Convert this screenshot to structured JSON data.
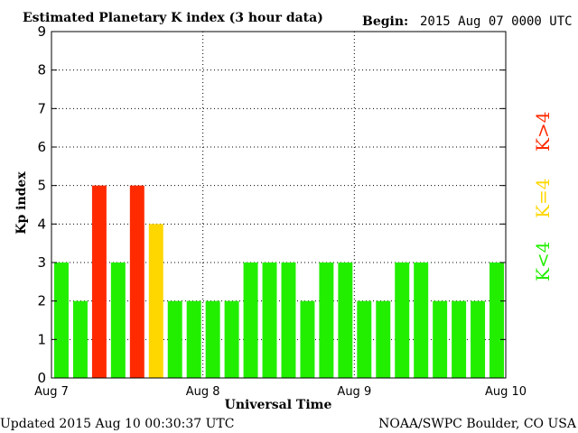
{
  "header": {
    "title": "Estimated Planetary K index (3 hour data)",
    "begin_label": "Begin:",
    "begin_value": "2015 Aug 07 0000 UTC"
  },
  "footer": {
    "updated": "Updated 2015 Aug 10 00:30:37 UTC",
    "source": "NOAA/SWPC Boulder, CO USA"
  },
  "legend": {
    "high": "K>4",
    "equal": "K=4",
    "low": "K<4"
  },
  "colors": {
    "high": "#ff2a00",
    "equal": "#ffd700",
    "low": "#22ee00"
  },
  "chart_data": {
    "type": "bar",
    "title": "Estimated Planetary K index (3 hour data)",
    "xlabel": "Universal Time",
    "ylabel": "Kp index",
    "ylim": [
      0,
      9
    ],
    "yticks": [
      0,
      1,
      2,
      3,
      4,
      5,
      6,
      7,
      8,
      9
    ],
    "xtick_labels": [
      "Aug 7",
      "Aug 8",
      "Aug 9",
      "Aug 10"
    ],
    "grid": true,
    "interval_hours": 3,
    "values": [
      3,
      2,
      5,
      3,
      5,
      4,
      2,
      2,
      2,
      2,
      3,
      3,
      3,
      2,
      3,
      3,
      2,
      2,
      3,
      3,
      2,
      2,
      2,
      3
    ]
  }
}
